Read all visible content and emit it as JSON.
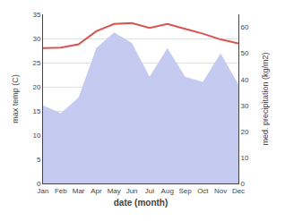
{
  "chart_data": {
    "type": "line",
    "xlabel": "date (month)",
    "ylabel": "max temp (C)",
    "y2label": "med. precipitation (kg/m2)",
    "categories": [
      "Jan",
      "Feb",
      "Mar",
      "Apr",
      "May",
      "Jun",
      "Jul",
      "Aug",
      "Sep",
      "Oct",
      "Nov",
      "Dec"
    ],
    "series": [
      {
        "type": "area",
        "axis": "y2",
        "color": "#c5caf0",
        "values": [
          30,
          27,
          33,
          52,
          58,
          54,
          41,
          52,
          41,
          39,
          50,
          38
        ]
      },
      {
        "type": "line",
        "color": "#d9534f",
        "values": [
          28.0,
          28.1,
          28.8,
          31.5,
          33.0,
          33.2,
          32.2,
          33.0,
          32.0,
          31.0,
          29.8,
          29.0
        ]
      }
    ],
    "ylim": [
      0,
      35
    ],
    "yticks": [
      0,
      5,
      10,
      15,
      20,
      25,
      30,
      35
    ],
    "y2lim": [
      0,
      65
    ],
    "y2ticks": [
      0,
      10,
      20,
      30,
      40,
      50,
      60
    ],
    "grid": true
  }
}
